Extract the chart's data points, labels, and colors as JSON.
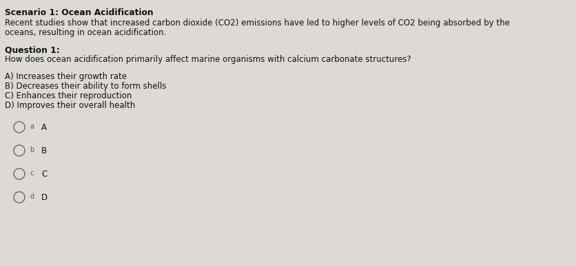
{
  "background_color": "#dddad6",
  "title_text": "Scenario 1: Ocean Acidification",
  "scenario_body_line1": "Recent studies show that increased carbon dioxide (CO2) emissions have led to higher levels of CO2 being absorbed by the",
  "scenario_body_line2": "oceans, resulting in ocean acidification.",
  "question_label": "Question 1:",
  "question_text": "How does ocean acidification primarily affect marine organisms with calcium carbonate structures?",
  "options": [
    "A) Increases their growth rate",
    "B) Decreases their ability to form shells",
    "C) Enhances their reproduction",
    "D) Improves their overall health"
  ],
  "radio_labels": [
    "a",
    "b",
    "c",
    "d"
  ],
  "radio_letters": [
    "A",
    "B",
    "C",
    "D"
  ],
  "text_color": "#111111",
  "radio_circle_color": "#666666",
  "radio_label_color": "#555555",
  "title_fontsize": 8.8,
  "body_fontsize": 8.5,
  "question_label_fontsize": 8.8,
  "question_text_fontsize": 8.5,
  "options_fontsize": 8.5,
  "radio_small_fontsize": 7.0,
  "radio_letter_fontsize": 8.5,
  "fig_width": 8.37,
  "fig_height": 3.87,
  "dpi": 100
}
